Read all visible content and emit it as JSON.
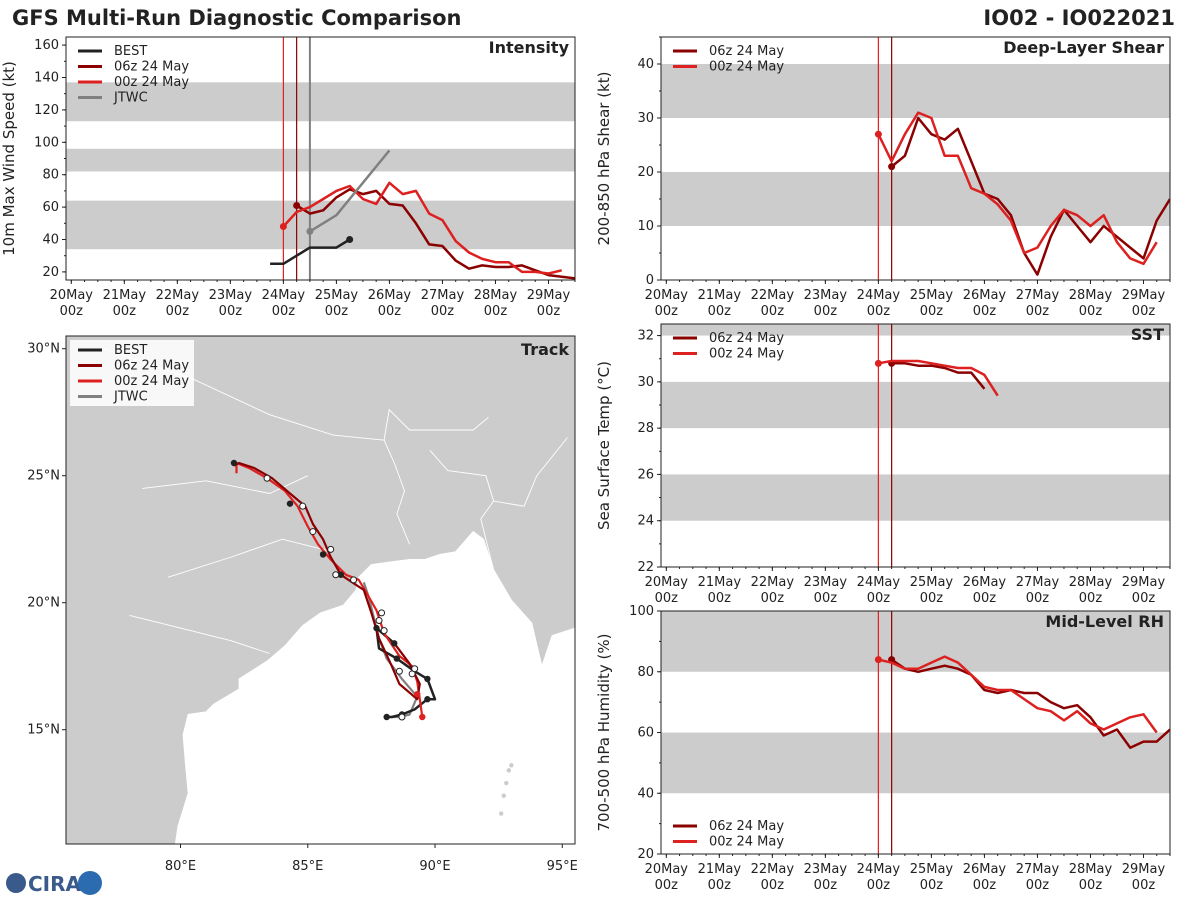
{
  "header": {
    "title": "GFS Multi-Run Diagnostic Comparison",
    "storm_id": "IO02 - IO022021"
  },
  "logo": {
    "text": "CIRA"
  },
  "colors": {
    "best": "#222222",
    "run06": "#8b0000",
    "run00": "#dd2020",
    "jtwc": "#808080",
    "band": "#cccccc",
    "land": "#cccccc",
    "coast": "#ffffff",
    "panel_bg": "#ffffff"
  },
  "time_axis": {
    "ticks": [
      {
        "day": "20May",
        "hour": "00z"
      },
      {
        "day": "21May",
        "hour": "00z"
      },
      {
        "day": "22May",
        "hour": "00z"
      },
      {
        "day": "23May",
        "hour": "00z"
      },
      {
        "day": "24May",
        "hour": "00z"
      },
      {
        "day": "25May",
        "hour": "00z"
      },
      {
        "day": "26May",
        "hour": "00z"
      },
      {
        "day": "27May",
        "hour": "00z"
      },
      {
        "day": "28May",
        "hour": "00z"
      },
      {
        "day": "29May",
        "hour": "00z"
      }
    ],
    "range_days": [
      -0.1,
      9.5
    ],
    "init_lines_days": [
      4.0,
      4.25
    ]
  },
  "legend_labels": {
    "best": "BEST",
    "run06": "06z 24 May",
    "run00": "00z 24 May",
    "jtwc": "JTWC"
  },
  "chart_data": [
    {
      "id": "intensity",
      "type": "line",
      "title": "Intensity",
      "ylabel": "10m Max Wind Speed (kt)",
      "xlabel": "",
      "ylim": [
        15,
        165
      ],
      "yticks": [
        20,
        40,
        60,
        80,
        100,
        120,
        140,
        160
      ],
      "bands": [
        [
          34,
          64
        ],
        [
          82,
          96
        ],
        [
          113,
          137
        ]
      ],
      "jtwc_line_day": 4.5,
      "series": [
        {
          "name": "BEST",
          "key": "best",
          "x": [
            3.75,
            4.0,
            4.25,
            4.5,
            4.75,
            5.0,
            5.25
          ],
          "y": [
            25,
            25,
            30,
            35,
            35,
            35,
            40
          ],
          "marker_last": true
        },
        {
          "name": "06z 24 May",
          "key": "run06",
          "x": [
            4.25,
            4.5,
            4.75,
            5.0,
            5.25,
            5.5,
            5.75,
            6.0,
            6.25,
            6.5,
            6.75,
            7.0,
            7.25,
            7.5,
            7.75,
            8.0,
            8.25,
            8.5,
            8.75,
            9.0,
            9.25,
            9.5
          ],
          "y": [
            61,
            56,
            58,
            66,
            71,
            68,
            70,
            62,
            61,
            50,
            37,
            36,
            27,
            22,
            24,
            23,
            23,
            24,
            21,
            18,
            17,
            16
          ],
          "marker_first": true
        },
        {
          "name": "00z 24 May",
          "key": "run00",
          "x": [
            4.0,
            4.25,
            4.5,
            4.75,
            5.0,
            5.25,
            5.5,
            5.75,
            6.0,
            6.25,
            6.5,
            6.75,
            7.0,
            7.25,
            7.5,
            7.75,
            8.0,
            8.25,
            8.5,
            8.75,
            9.0,
            9.25
          ],
          "y": [
            48,
            57,
            60,
            65,
            70,
            73,
            65,
            62,
            75,
            68,
            70,
            56,
            52,
            39,
            32,
            28,
            26,
            26,
            20,
            20,
            19,
            21
          ],
          "marker_first": true
        },
        {
          "name": "JTWC",
          "key": "jtwc",
          "x": [
            4.5,
            5.0,
            6.0
          ],
          "y": [
            45,
            55,
            95
          ],
          "marker_first": true
        }
      ],
      "legend": [
        "BEST",
        "06z 24 May",
        "00z 24 May",
        "JTWC"
      ],
      "legend_position": "top-left"
    },
    {
      "id": "shear",
      "type": "line",
      "title": "Deep-Layer Shear",
      "ylabel": "200-850 hPa Shear (kt)",
      "xlabel": "",
      "ylim": [
        0,
        45
      ],
      "yticks": [
        0,
        10,
        20,
        30,
        40
      ],
      "bands": [
        [
          10,
          20
        ],
        [
          30,
          40
        ]
      ],
      "series": [
        {
          "name": "06z 24 May",
          "key": "run06",
          "x": [
            4.25,
            4.5,
            4.75,
            5.0,
            5.25,
            5.5,
            5.75,
            6.0,
            6.25,
            6.5,
            6.75,
            7.0,
            7.25,
            7.5,
            7.75,
            8.0,
            8.25,
            8.5,
            8.75,
            9.0,
            9.25,
            9.5
          ],
          "y": [
            21,
            23,
            30,
            27,
            26,
            28,
            22,
            16,
            15,
            12,
            5,
            1,
            8,
            13,
            10,
            7,
            10,
            8,
            6,
            4,
            11,
            15
          ],
          "marker_first": true
        },
        {
          "name": "00z 24 May",
          "key": "run00",
          "x": [
            4.0,
            4.25,
            4.5,
            4.75,
            5.0,
            5.25,
            5.5,
            5.75,
            6.0,
            6.25,
            6.5,
            6.75,
            7.0,
            7.25,
            7.5,
            7.75,
            8.0,
            8.25,
            8.5,
            8.75,
            9.0,
            9.25
          ],
          "y": [
            27,
            22,
            27,
            31,
            30,
            23,
            23,
            17,
            16,
            14,
            11,
            5,
            6,
            10,
            13,
            12,
            10,
            12,
            7,
            4,
            3,
            7
          ],
          "marker_first": true
        }
      ],
      "legend": [
        "06z 24 May",
        "00z 24 May"
      ],
      "legend_position": "top-left"
    },
    {
      "id": "sst",
      "type": "line",
      "title": "SST",
      "ylabel": "Sea Surface Temp (°C)",
      "xlabel": "",
      "ylim": [
        22,
        32.5
      ],
      "yticks": [
        22,
        24,
        26,
        28,
        30,
        32
      ],
      "bands": [
        [
          24,
          26
        ],
        [
          28,
          30
        ],
        [
          32,
          33
        ]
      ],
      "series": [
        {
          "name": "06z 24 May",
          "key": "run06",
          "x": [
            4.25,
            4.5,
            4.75,
            5.0,
            5.25,
            5.5,
            5.75,
            6.0
          ],
          "y": [
            30.8,
            30.8,
            30.7,
            30.7,
            30.6,
            30.4,
            30.4,
            29.7
          ],
          "marker_first": true
        },
        {
          "name": "00z 24 May",
          "key": "run00",
          "x": [
            4.0,
            4.25,
            4.5,
            4.75,
            5.0,
            5.25,
            5.5,
            5.75,
            6.0,
            6.25
          ],
          "y": [
            30.8,
            30.9,
            30.9,
            30.9,
            30.8,
            30.7,
            30.6,
            30.6,
            30.3,
            29.4
          ],
          "marker_first": true
        }
      ],
      "legend": [
        "06z 24 May",
        "00z 24 May"
      ],
      "legend_position": "top-left"
    },
    {
      "id": "rh",
      "type": "line",
      "title": "Mid-Level RH",
      "ylabel": "700-500 hPa Humidity (%)",
      "xlabel": "",
      "ylim": [
        20,
        100
      ],
      "yticks": [
        20,
        40,
        60,
        80,
        100
      ],
      "bands": [
        [
          40,
          60
        ],
        [
          80,
          100
        ]
      ],
      "series": [
        {
          "name": "06z 24 May",
          "key": "run06",
          "x": [
            4.25,
            4.5,
            4.75,
            5.0,
            5.25,
            5.5,
            5.75,
            6.0,
            6.25,
            6.5,
            6.75,
            7.0,
            7.25,
            7.5,
            7.75,
            8.0,
            8.25,
            8.5,
            8.75,
            9.0,
            9.25,
            9.5
          ],
          "y": [
            84,
            81,
            80,
            81,
            82,
            81,
            79,
            74,
            73,
            74,
            73,
            73,
            70,
            68,
            69,
            65,
            59,
            61,
            55,
            57,
            57,
            61
          ],
          "marker_first": true
        },
        {
          "name": "00z 24 May",
          "key": "run00",
          "x": [
            4.0,
            4.25,
            4.5,
            4.75,
            5.0,
            5.25,
            5.5,
            5.75,
            6.0,
            6.25,
            6.5,
            6.75,
            7.0,
            7.25,
            7.5,
            7.75,
            8.0,
            8.25,
            8.5,
            8.75,
            9.0,
            9.25
          ],
          "y": [
            84,
            83,
            81,
            81,
            83,
            85,
            83,
            79,
            75,
            74,
            74,
            71,
            68,
            67,
            64,
            67,
            63,
            61,
            63,
            65,
            66,
            60
          ],
          "marker_first": true
        }
      ],
      "legend": [
        "06z 24 May",
        "00z 24 May"
      ],
      "legend_position": "bottom-left"
    },
    {
      "id": "track",
      "type": "map",
      "title": "Track",
      "lon_range": [
        75.5,
        95.5
      ],
      "lat_range": [
        10.5,
        30.5
      ],
      "lon_ticks": [
        {
          "value": 80,
          "label": "80°E"
        },
        {
          "value": 85,
          "label": "85°E"
        },
        {
          "value": 90,
          "label": "90°E"
        },
        {
          "value": 95,
          "label": "95°E"
        }
      ],
      "lat_ticks": [
        {
          "value": 15,
          "label": "15°N"
        },
        {
          "value": 20,
          "label": "20°N"
        },
        {
          "value": 25,
          "label": "25°N"
        },
        {
          "value": 30,
          "label": "30°N"
        }
      ],
      "series": [
        {
          "name": "BEST",
          "key": "best",
          "lon": [
            88.1,
            88.3,
            88.7,
            89.2,
            89.7,
            90.0,
            89.7,
            89.2,
            88.5,
            87.8,
            87.7,
            88.4
          ],
          "lat": [
            15.5,
            15.5,
            15.6,
            15.8,
            16.2,
            16.2,
            17.0,
            17.3,
            17.8,
            18.2,
            19.0,
            18.4
          ],
          "lon_jtwc_style": false
        },
        {
          "name": "06z 24 May",
          "key": "run06",
          "lon": [
            88.4,
            89.0,
            89.4,
            89.3,
            88.6,
            88.3,
            87.8,
            87.5,
            87.2,
            86.3,
            85.9,
            85.6,
            85.2,
            84.9,
            84.3,
            83.6,
            82.9,
            82.3,
            82.1
          ],
          "lat": [
            18.4,
            17.6,
            16.8,
            16.2,
            16.8,
            17.5,
            18.6,
            19.6,
            20.5,
            21.1,
            21.8,
            22.5,
            23.1,
            23.8,
            24.3,
            24.9,
            25.3,
            25.5,
            25.4
          ],
          "dots": [
            [
              88.4,
              18.4
            ],
            [
              86.3,
              21.1
            ],
            [
              85.6,
              21.9
            ],
            [
              84.3,
              23.9
            ],
            [
              82.1,
              25.5
            ]
          ]
        },
        {
          "name": "00z 24 May",
          "key": "run00",
          "lon": [
            89.5,
            89.4,
            89.3,
            89.1,
            88.6,
            88.0,
            87.7,
            87.3,
            87.0,
            86.5,
            85.9,
            85.4,
            85.0,
            84.6,
            84.1,
            83.4,
            82.7,
            82.2,
            82.2
          ],
          "lat": [
            15.5,
            16.2,
            16.9,
            17.5,
            17.9,
            18.8,
            19.7,
            20.4,
            20.9,
            21.1,
            21.7,
            22.3,
            23.0,
            23.8,
            24.4,
            24.9,
            25.3,
            25.5,
            25.1
          ],
          "dots": [
            [
              89.5,
              15.5
            ],
            [
              89.3,
              16.4
            ]
          ]
        },
        {
          "name": "JTWC",
          "key": "jtwc",
          "lon": [
            88.1,
            88.6,
            89.0,
            89.3,
            88.7,
            88.1,
            87.8,
            87.6,
            87.4,
            87.2
          ],
          "lat": [
            15.5,
            15.5,
            15.6,
            16.3,
            17.0,
            17.8,
            18.6,
            19.4,
            20.2,
            20.8
          ],
          "open_dots": [
            [
              88.7,
              15.5
            ],
            [
              89.1,
              17.2
            ],
            [
              88.6,
              17.3
            ],
            [
              87.8,
              19.3
            ],
            [
              87.9,
              19.6
            ],
            [
              88.0,
              18.9
            ],
            [
              86.8,
              20.9
            ],
            [
              86.1,
              21.1
            ],
            [
              85.2,
              22.8
            ],
            [
              84.8,
              23.8
            ],
            [
              83.4,
              24.9
            ],
            [
              85.9,
              22.1
            ],
            [
              89.2,
              17.4
            ]
          ]
        }
      ],
      "legend": [
        "BEST",
        "06z 24 May",
        "00z 24 May",
        "JTWC"
      ],
      "legend_position": "top-left"
    }
  ]
}
